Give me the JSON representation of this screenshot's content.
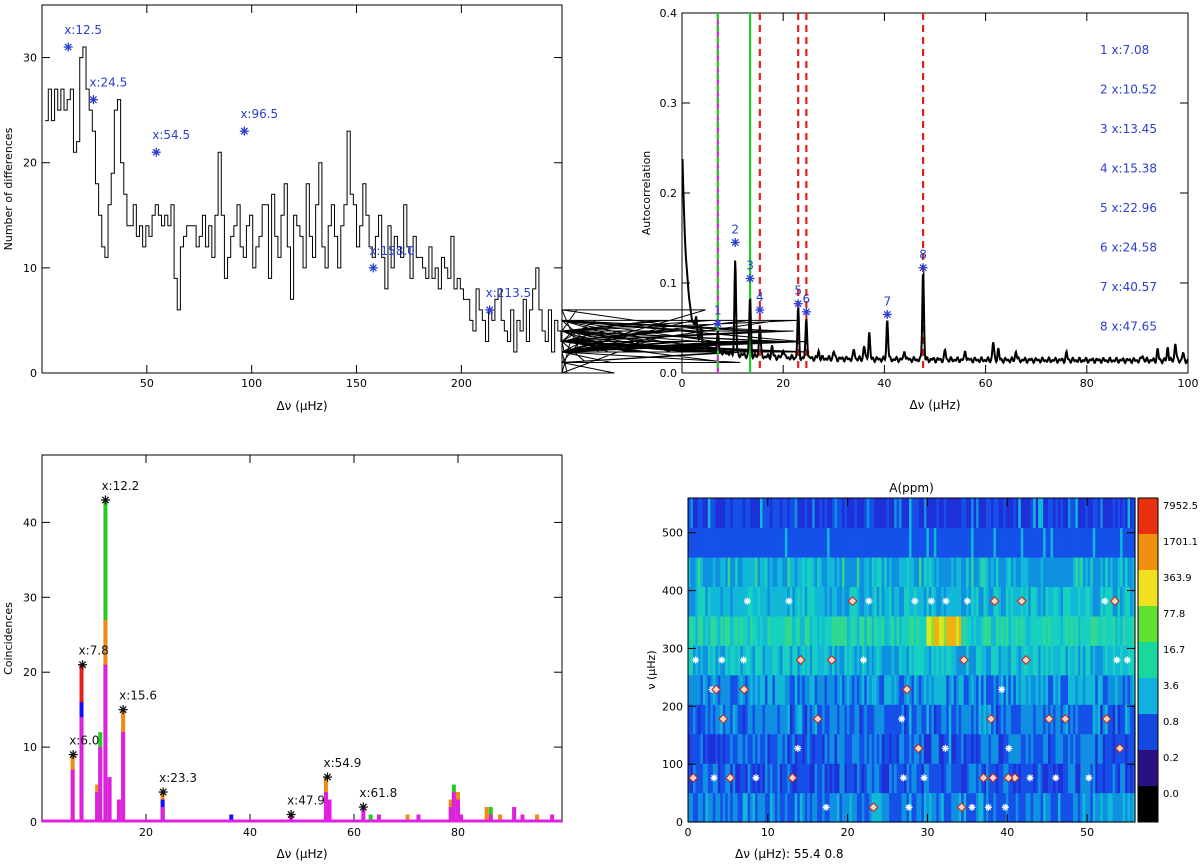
{
  "colors": {
    "axis": "#000000",
    "marker_blue": "#2a3fd0",
    "green_line": "#22cc22",
    "red_dash": "#e8201a",
    "magenta": "#e020e0",
    "orange": "#f08a10",
    "annot_black": "#111111"
  },
  "chart_data": [
    {
      "id": "histogram",
      "type": "line",
      "title": "",
      "xlabel": "Δν (μHz)",
      "ylabel": "Number of differences",
      "xlim": [
        0,
        248
      ],
      "ylim": [
        0,
        35
      ],
      "xticks": [
        "50",
        "100",
        "150",
        "200"
      ],
      "yticks": [
        "0",
        "10",
        "20",
        "30"
      ],
      "x_start": 1.5,
      "bin_width": 1.5,
      "values": [
        24,
        27,
        24,
        27,
        25,
        27,
        25,
        26,
        27,
        21,
        22,
        30,
        31,
        27,
        25,
        23,
        18,
        15,
        12,
        11,
        16,
        19,
        25,
        26,
        20,
        17,
        14,
        14,
        16,
        13,
        14,
        12,
        14,
        13,
        15,
        16,
        15,
        14,
        15,
        14,
        16,
        9,
        6,
        12,
        13,
        14,
        14,
        14,
        12,
        13,
        15,
        12,
        14,
        11,
        15,
        21,
        15,
        9,
        11,
        13,
        14,
        16,
        12,
        11,
        14,
        15,
        10,
        12,
        13,
        16,
        16,
        9,
        17,
        13,
        11,
        15,
        18,
        12,
        7,
        15,
        14,
        13,
        10,
        18,
        13,
        11,
        16,
        20,
        12,
        10,
        14,
        16,
        13,
        10,
        14,
        16,
        23,
        17,
        16,
        12,
        14,
        18,
        15,
        12,
        11,
        13,
        15,
        11,
        8,
        14,
        10,
        13,
        12,
        11,
        16,
        12,
        9,
        13,
        11,
        11,
        10,
        9,
        12,
        9,
        10,
        8,
        11,
        10,
        9,
        13,
        8,
        9,
        8,
        7,
        7,
        5,
        4,
        8,
        6,
        5,
        3,
        6,
        5,
        7,
        8,
        5,
        4,
        3,
        6,
        2,
        5,
        4,
        7,
        3,
        6,
        8,
        10,
        6,
        4,
        3,
        6,
        2,
        5,
        4,
        3,
        2,
        0,
        3,
        4,
        6,
        2,
        3,
        1,
        4,
        3,
        5,
        2,
        3,
        4,
        2,
        1,
        0,
        2,
        3,
        4,
        2,
        3,
        2,
        3,
        2,
        4,
        3,
        2,
        3,
        4,
        5,
        3,
        4,
        5,
        2,
        3,
        4,
        4,
        2,
        3,
        2,
        5,
        4,
        3,
        2,
        6,
        4,
        5,
        3,
        2,
        2,
        3,
        1,
        2,
        3,
        2,
        1,
        2,
        3,
        5,
        4,
        2,
        3,
        2,
        3,
        4,
        3,
        2,
        5,
        4,
        3,
        2,
        3,
        4,
        5,
        3,
        2,
        3,
        2
      ],
      "peaks": [
        {
          "x": 12.5,
          "y": 31,
          "label": "x:12.5"
        },
        {
          "x": 24.5,
          "y": 26,
          "label": "x:24.5"
        },
        {
          "x": 54.5,
          "y": 21,
          "label": "x:54.5"
        },
        {
          "x": 96.5,
          "y": 23,
          "label": "x:96.5"
        },
        {
          "x": 158.0,
          "y": 10,
          "label": "x:158.0"
        },
        {
          "x": 213.5,
          "y": 6,
          "label": "x:213.5"
        }
      ]
    },
    {
      "id": "autocorrelation",
      "type": "line",
      "title": "",
      "xlabel": "Δν (μHz)",
      "ylabel": "Autocorrelation",
      "xlim": [
        0,
        100
      ],
      "ylim": [
        0,
        0.4
      ],
      "xticks": [
        "0",
        "20",
        "40",
        "60",
        "80",
        "100"
      ],
      "yticks": [
        "0.0",
        "0.1",
        "0.2",
        "0.3",
        "0.4"
      ],
      "magenta_green_line_x": 7.08,
      "green_line_x": 13.45,
      "red_dash_x": [
        15.38,
        22.96,
        24.58,
        47.65
      ],
      "peaks": [
        {
          "n": "1",
          "x": 7.08,
          "y": 0.055
        },
        {
          "n": "2",
          "x": 10.52,
          "y": 0.145
        },
        {
          "n": "3",
          "x": 13.45,
          "y": 0.105
        },
        {
          "n": "4",
          "x": 15.38,
          "y": 0.07
        },
        {
          "n": "5",
          "x": 22.96,
          "y": 0.077
        },
        {
          "n": "6",
          "x": 24.58,
          "y": 0.068
        },
        {
          "n": "7",
          "x": 40.57,
          "y": 0.065
        },
        {
          "n": "8",
          "x": 47.65,
          "y": 0.117
        }
      ],
      "legend": [
        "1 x:7.08",
        "2 x:10.52",
        "3 x:13.45",
        "4 x:15.38",
        "5 x:22.96",
        "6 x:24.58",
        "7 x:40.57",
        "8 x:47.65"
      ]
    },
    {
      "id": "coincidences",
      "type": "bar",
      "title": "",
      "xlabel": "Δν (μHz)",
      "ylabel": "Coincidences",
      "xlim": [
        0,
        100
      ],
      "ylim": [
        0,
        49
      ],
      "xticks": [
        "20",
        "40",
        "60",
        "80"
      ],
      "yticks": [
        "0",
        "10",
        "20",
        "30",
        "40"
      ],
      "peaks": [
        {
          "x": 6.0,
          "y": 9,
          "label": "x:6.0"
        },
        {
          "x": 7.8,
          "y": 21,
          "label": "x:7.8"
        },
        {
          "x": 12.2,
          "y": 43,
          "label": "x:12.2"
        },
        {
          "x": 15.6,
          "y": 15,
          "label": "x:15.6"
        },
        {
          "x": 23.3,
          "y": 4,
          "label": "x:23.3"
        },
        {
          "x": 47.9,
          "y": 1,
          "label": "x:47.9"
        },
        {
          "x": 54.9,
          "y": 6,
          "label": "x:54.9"
        },
        {
          "x": 61.8,
          "y": 2,
          "label": "x:61.8"
        }
      ],
      "bars": [
        {
          "x": 5.9,
          "magenta": 7,
          "orange": 9
        },
        {
          "x": 7.6,
          "magenta": 14,
          "blue": 16,
          "red": 21
        },
        {
          "x": 10.6,
          "magenta": 4,
          "orange": 5
        },
        {
          "x": 11.2,
          "magenta": 10,
          "green": 12
        },
        {
          "x": 12.2,
          "magenta": 21,
          "orange": 27,
          "green": 43
        },
        {
          "x": 13.0,
          "magenta": 6
        },
        {
          "x": 14.8,
          "magenta": 3
        },
        {
          "x": 15.6,
          "magenta": 12,
          "orange": 15
        },
        {
          "x": 23.2,
          "magenta": 2,
          "blue": 3,
          "orange": 4
        },
        {
          "x": 36.4,
          "blue": 1
        },
        {
          "x": 47.9,
          "magenta": 1
        },
        {
          "x": 54.6,
          "magenta": 4,
          "orange": 6
        },
        {
          "x": 55.3,
          "magenta": 3
        },
        {
          "x": 61.8,
          "magenta": 2
        },
        {
          "x": 63.2,
          "green": 1
        },
        {
          "x": 64.8,
          "magenta": 1
        },
        {
          "x": 70.3,
          "orange": 1
        },
        {
          "x": 72.4,
          "magenta": 1
        },
        {
          "x": 78.6,
          "magenta": 2,
          "orange": 3
        },
        {
          "x": 79.2,
          "magenta": 4,
          "green": 5
        },
        {
          "x": 80.0,
          "magenta": 3,
          "orange": 4
        },
        {
          "x": 80.6,
          "magenta": 1
        },
        {
          "x": 85.5,
          "orange": 2
        },
        {
          "x": 86.3,
          "magenta": 1,
          "green": 2
        },
        {
          "x": 88.1,
          "orange": 1
        },
        {
          "x": 90.8,
          "magenta": 2,
          "orange": 2
        },
        {
          "x": 92.4,
          "magenta": 1
        },
        {
          "x": 95.2,
          "orange": 1
        },
        {
          "x": 98.1,
          "magenta": 1
        }
      ]
    },
    {
      "id": "amplitude_map",
      "type": "heatmap",
      "title": "A(ppm)",
      "xlabel": "Δν (μHz): 55.4    0.8",
      "ylabel": "ν (μHz)",
      "xlim": [
        0,
        56
      ],
      "ylim": [
        0,
        560
      ],
      "xticks": [
        "0",
        "10",
        "20",
        "30",
        "40",
        "50"
      ],
      "yticks": [
        "0",
        "100",
        "200",
        "300",
        "400",
        "500"
      ],
      "colorbar_labels": [
        "7952.5",
        "1701.1",
        "363.9",
        "77.8",
        "16.7",
        "3.6",
        "0.8",
        "0.2",
        "0.0"
      ]
    }
  ]
}
